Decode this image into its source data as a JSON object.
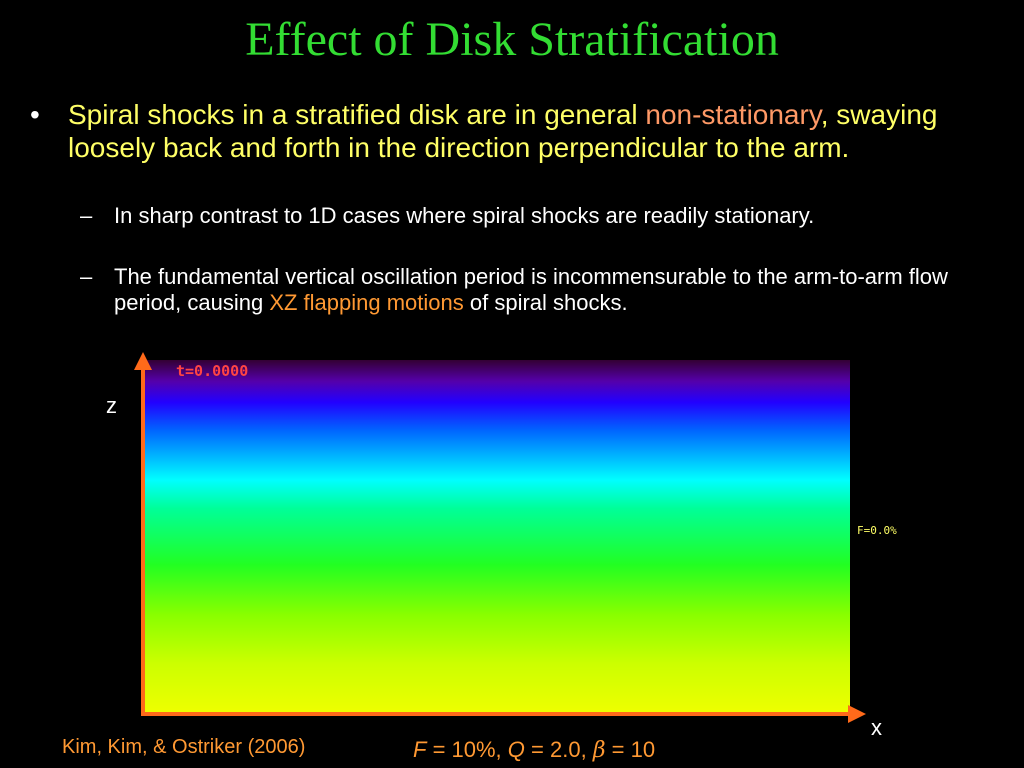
{
  "slide": {
    "title": "Effect of Disk Stratification",
    "bullet": {
      "marker": "•",
      "text_before": "Spiral shocks in a stratified disk are in general ",
      "highlight": "non-stationary",
      "text_after": ", swaying loosely back and forth in the direction perpendicular to the arm."
    },
    "sub_bullets": [
      {
        "marker": "–",
        "text_before": "In sharp contrast to 1D cases where spiral shocks are readily stationary.",
        "highlight": "",
        "text_after": ""
      },
      {
        "marker": "–",
        "text_before": "The fundamental vertical oscillation period is incommensurable to the arm-to-arm flow period, causing ",
        "highlight": "XZ flapping motions",
        "text_after": " of spiral shocks."
      }
    ],
    "figure": {
      "time_stamp": "t=0.0000",
      "f_label": "F=0.0%",
      "z_axis_label": "z",
      "x_axis_label": "x",
      "axis_color": "#ff6a1a"
    },
    "citation": "Kim, Kim, & Ostriker (2006)",
    "params": {
      "f_symbol": "F",
      "f_value": " = 10%,  ",
      "q_symbol": "Q",
      "q_value": " = 2.0, ",
      "beta_symbol": "β",
      "beta_value": " = 10"
    }
  },
  "colors": {
    "background": "#000000",
    "title": "#33dd33",
    "bullet_text": "#ffff66",
    "highlight": "#ff9966",
    "sub_text": "#ffffff",
    "sub_highlight": "#ff9933"
  }
}
